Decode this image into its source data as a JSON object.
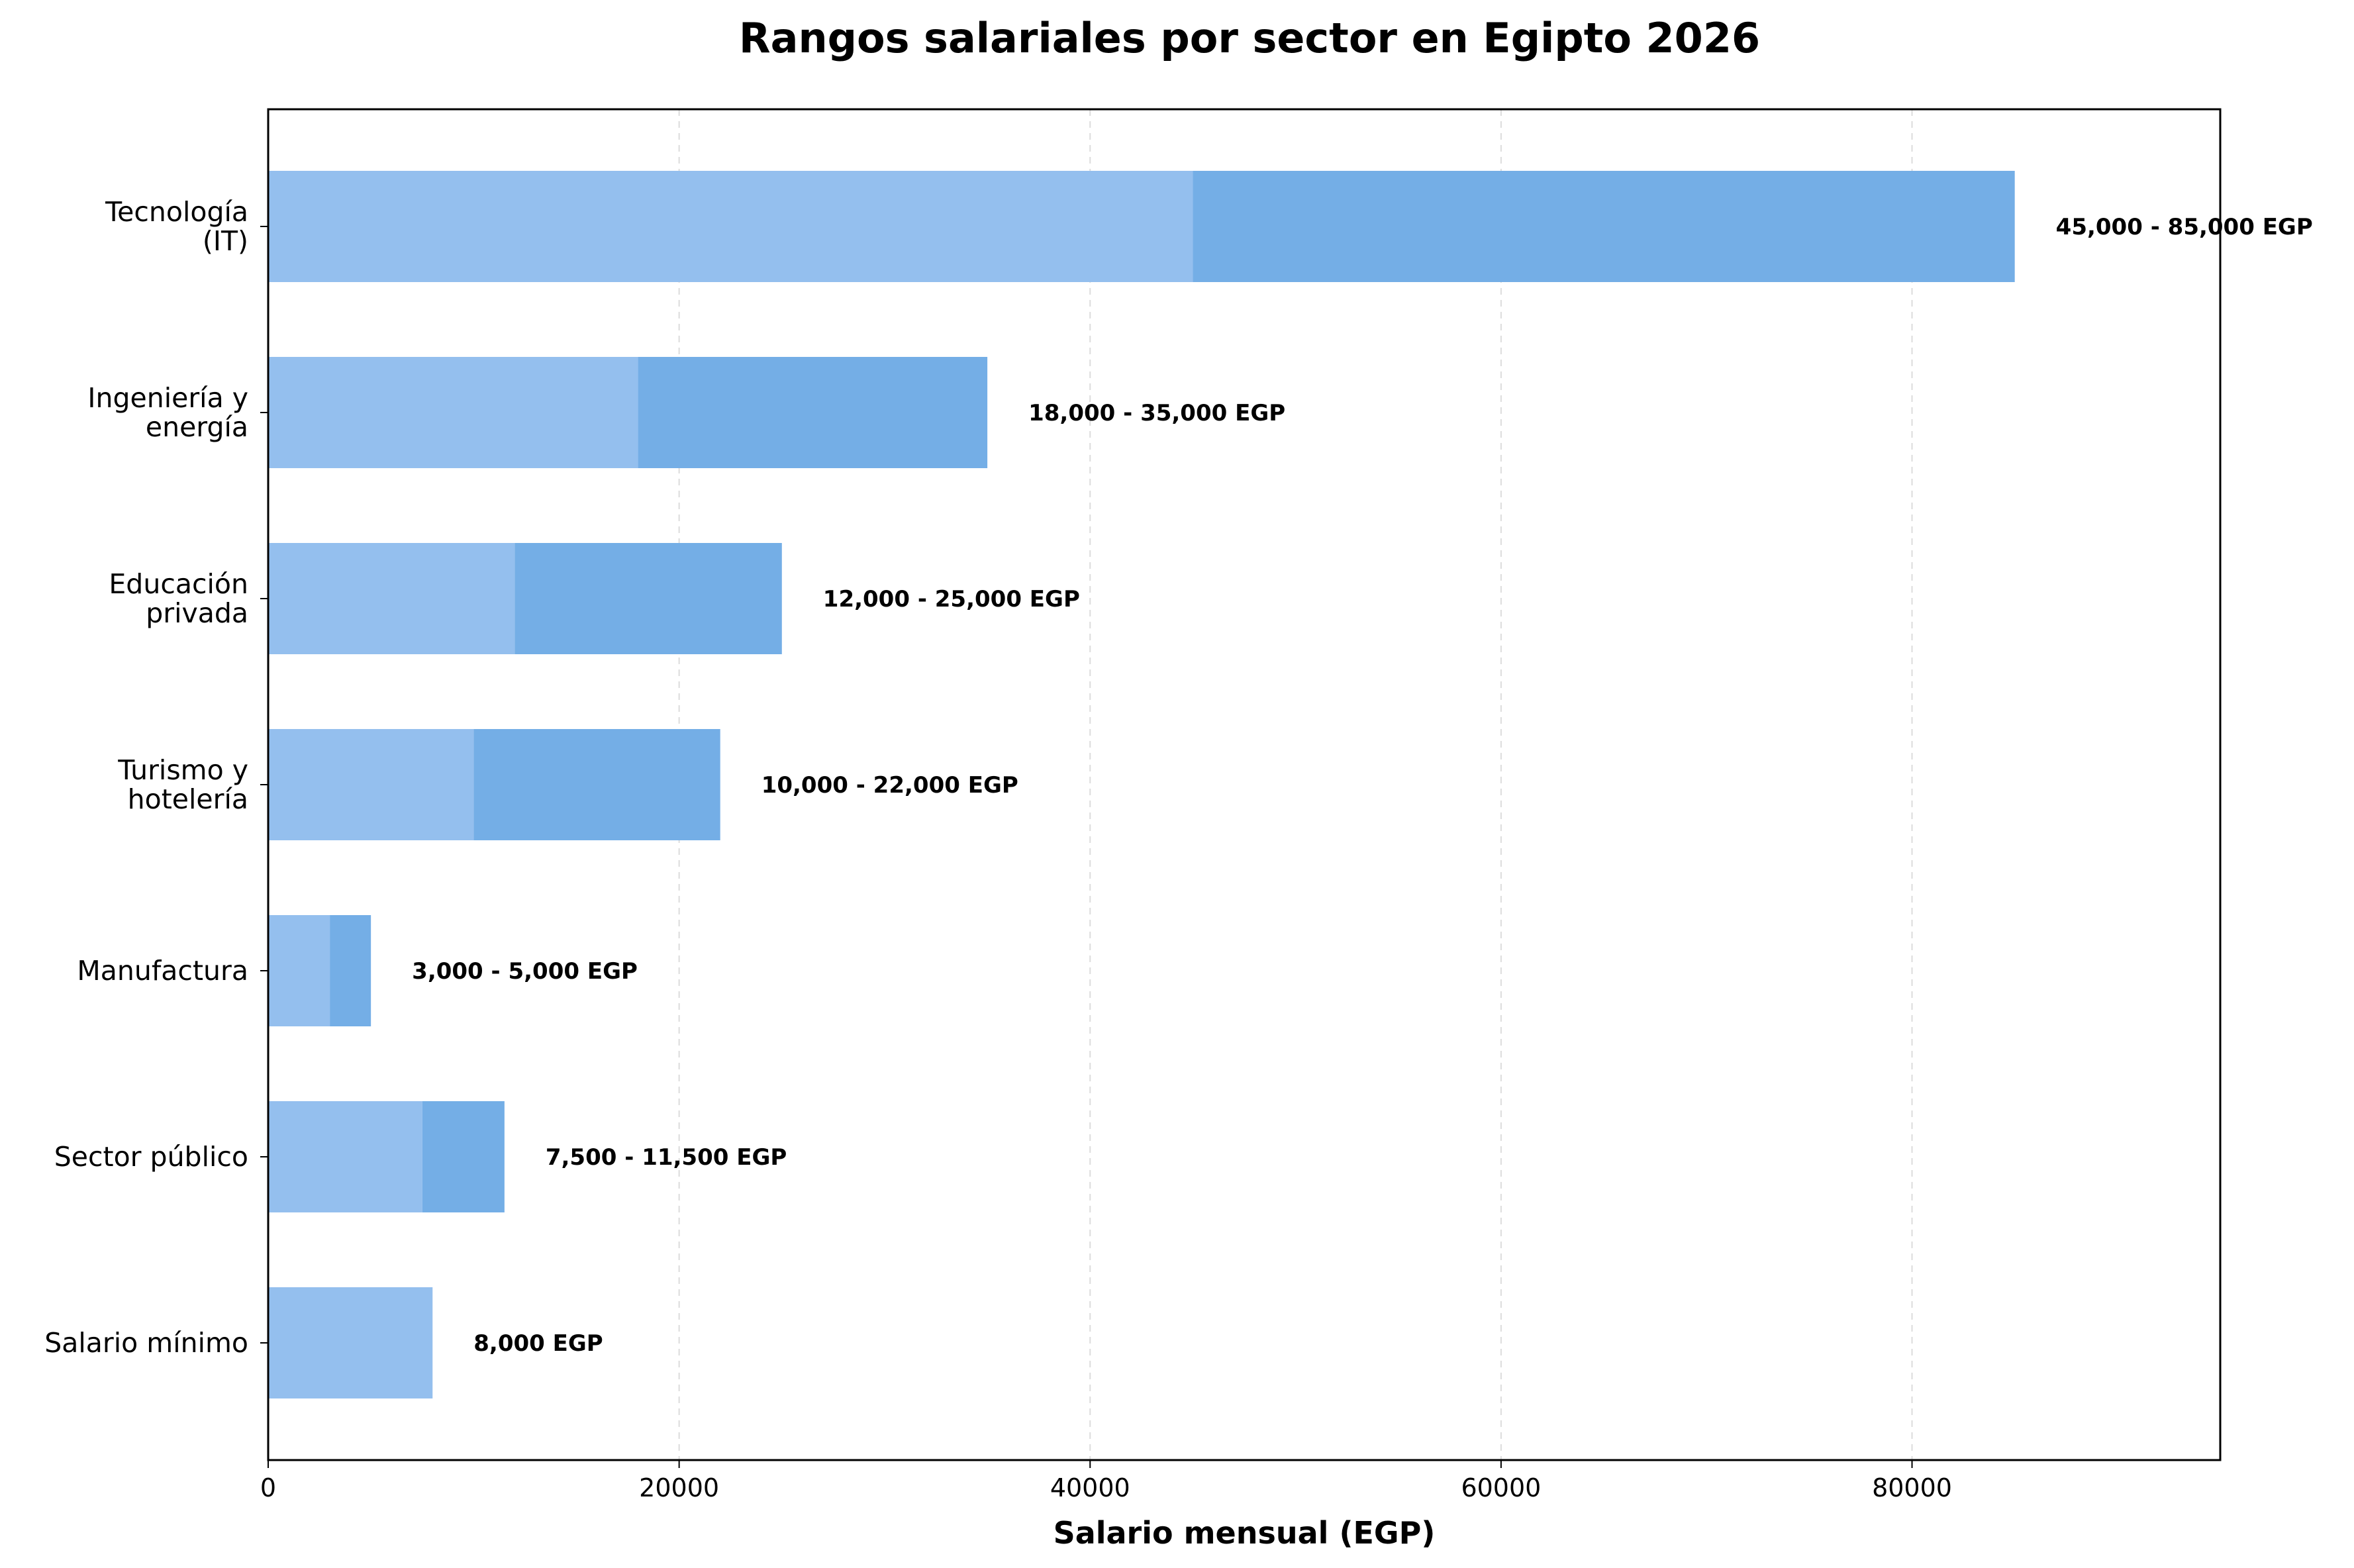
{
  "chart_data": {
    "type": "bar",
    "orientation": "horizontal",
    "stacked": true,
    "title": "Rangos salariales por sector en Egipto 2026",
    "xlabel": "Salario mensual (EGP)",
    "ylabel": "",
    "xlim": [
      0,
      95000
    ],
    "xticks": [
      0,
      20000,
      40000,
      60000,
      80000
    ],
    "xtick_labels": [
      "0",
      "20000",
      "40000",
      "60000",
      "80000"
    ],
    "grid": "vertical dashed",
    "categories": [
      [
        "Tecnología",
        "(IT)"
      ],
      [
        "Ingeniería y",
        "energía"
      ],
      [
        "Educación",
        "privada"
      ],
      [
        "Turismo y",
        "hotelería"
      ],
      [
        "Manufactura"
      ],
      [
        "Sector público"
      ],
      [
        "Salario mínimo"
      ]
    ],
    "min": [
      45000,
      18000,
      12000,
      10000,
      3000,
      7500,
      8000
    ],
    "max": [
      85000,
      35000,
      25000,
      22000,
      5000,
      11500,
      8000
    ],
    "labels": [
      "45,000 - 85,000 EGP",
      "18,000 - 35,000 EGP",
      "12,000 - 25,000 EGP",
      "10,000 - 22,000 EGP",
      "3,000 - 5,000 EGP",
      "7,500 - 11,500 EGP",
      "8,000 EGP"
    ],
    "colors": {
      "min": "#94bfee",
      "range": "#74aee6"
    }
  }
}
